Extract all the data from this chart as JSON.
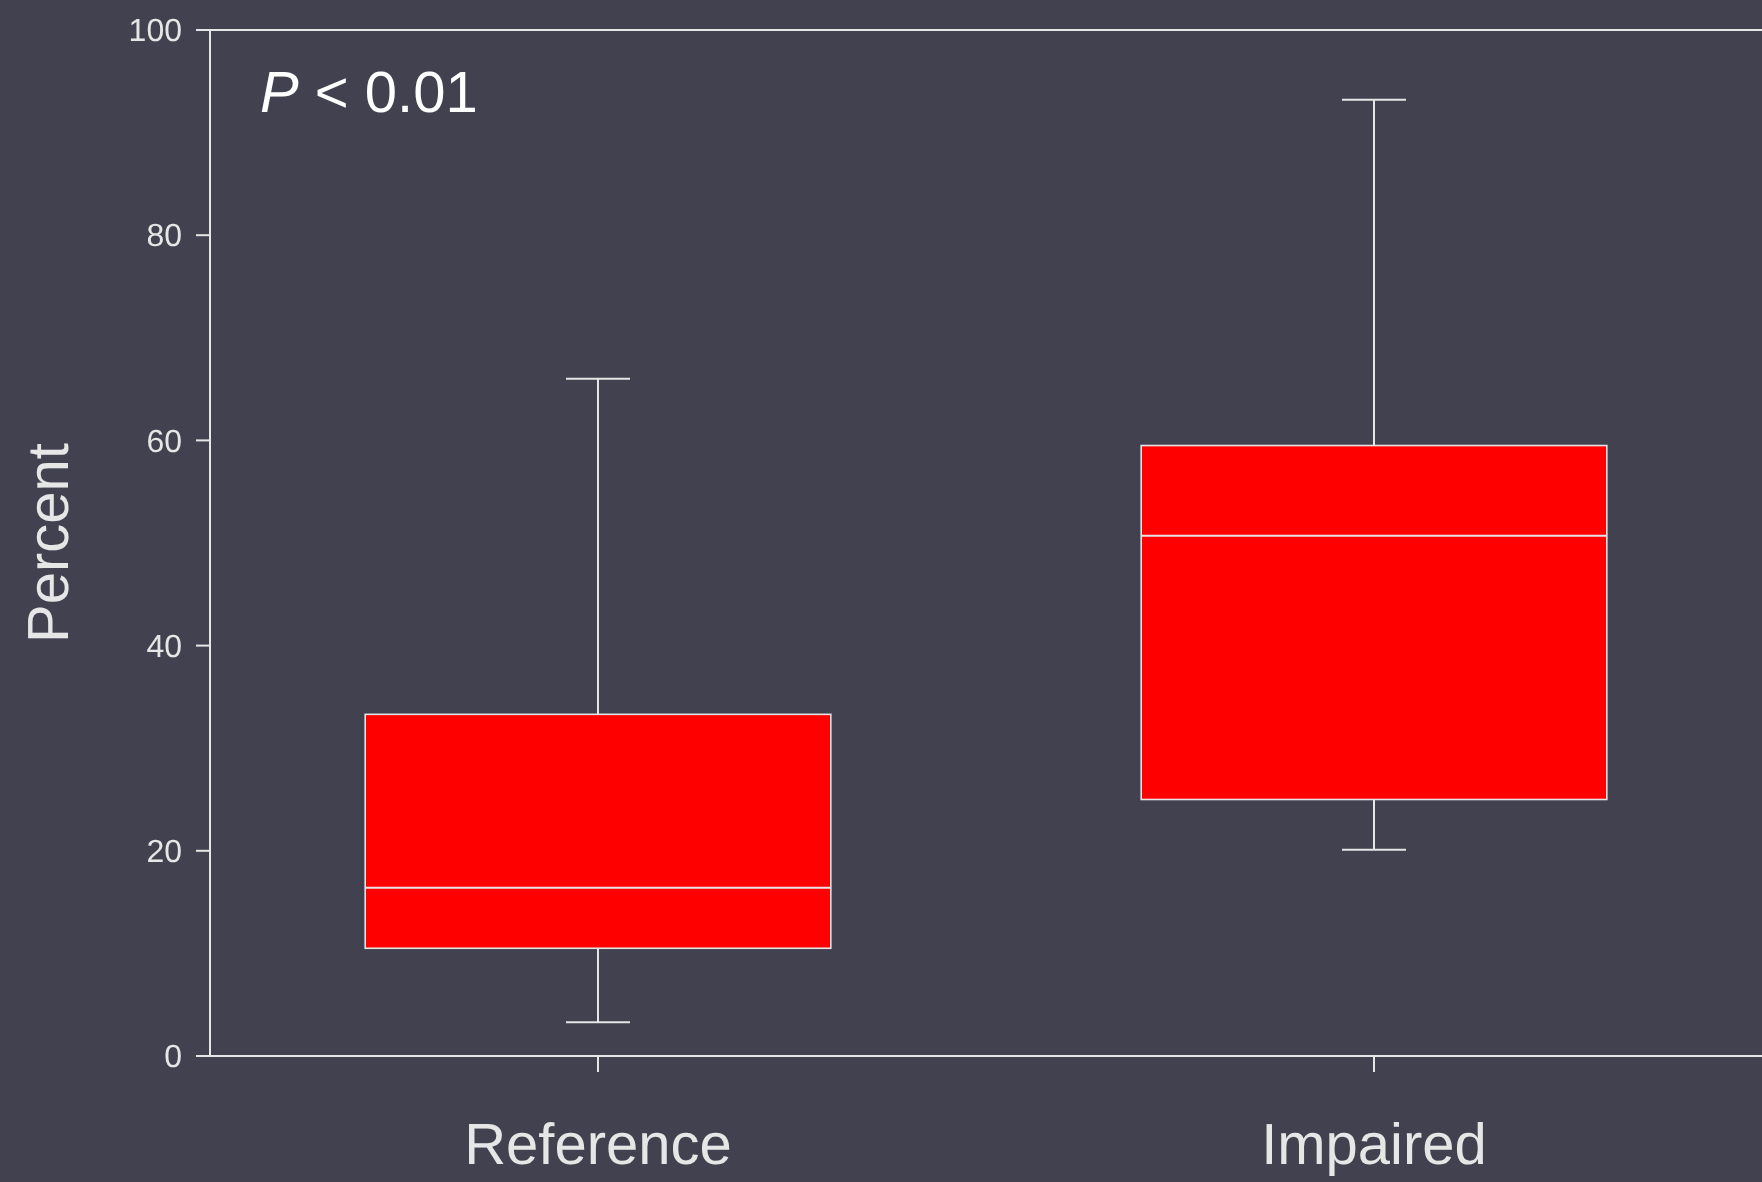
{
  "chart_data": {
    "type": "box",
    "categories": [
      "Reference",
      "Impaired"
    ],
    "boxes": [
      {
        "low": 3.3,
        "q1": 10.5,
        "median": 16.4,
        "q3": 33.3,
        "high": 66
      },
      {
        "low": 20.1,
        "q1": 25,
        "median": 50.7,
        "q3": 59.5,
        "high": 93.2
      }
    ],
    "color": "#ff0000",
    "ylabel": "Percent",
    "ylim": [
      0,
      100
    ],
    "yticks": [
      0,
      20,
      40,
      60,
      80,
      100
    ],
    "annotations": [
      "P < 0.01"
    ],
    "grid": false
  }
}
